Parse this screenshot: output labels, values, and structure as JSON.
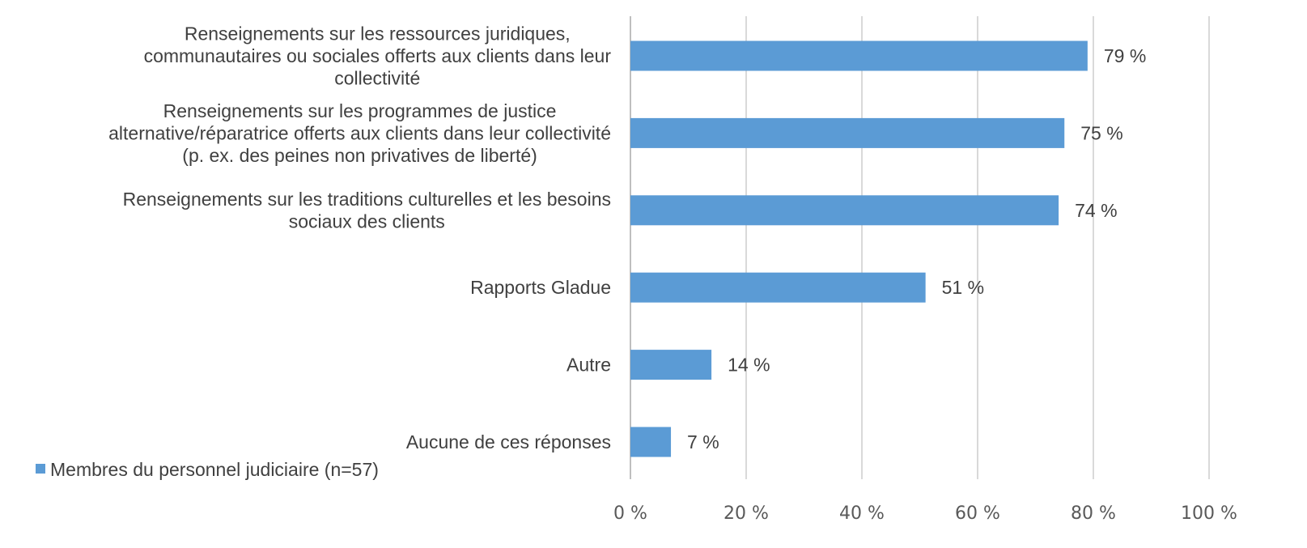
{
  "chart_data": {
    "type": "bar",
    "orientation": "horizontal",
    "categories": [
      [
        "Renseignements sur les ressources juridiques,",
        "communautaires ou sociales offerts aux clients dans leur",
        "collectivité"
      ],
      [
        "Renseignements sur les programmes de justice",
        "alternative/réparatrice offerts aux clients dans leur collectivité",
        "(p. ex. des peines non privatives de liberté)"
      ],
      [
        "Renseignements sur les traditions culturelles et les besoins",
        "sociaux des clients"
      ],
      [
        "Rapports Gladue"
      ],
      [
        "Autre"
      ],
      [
        "Aucune de ces réponses"
      ]
    ],
    "series": [
      {
        "name": "Membres du personnel judiciaire (n=57)",
        "values": [
          79,
          75,
          74,
          51,
          14,
          7
        ],
        "value_labels": [
          "79 %",
          "75 %",
          "74 %",
          "51 %",
          "14 %",
          "7 %"
        ],
        "color": "#5b9bd5"
      }
    ],
    "xlim": [
      0,
      100
    ],
    "xticks": [
      0,
      20,
      40,
      60,
      80,
      100
    ],
    "xtick_labels": [
      "0 %",
      "20 %",
      "40 %",
      "60 %",
      "80 %",
      "100 %"
    ],
    "grid": true,
    "gridline_color": "#d9d9d9",
    "legend": "bottom-left"
  }
}
